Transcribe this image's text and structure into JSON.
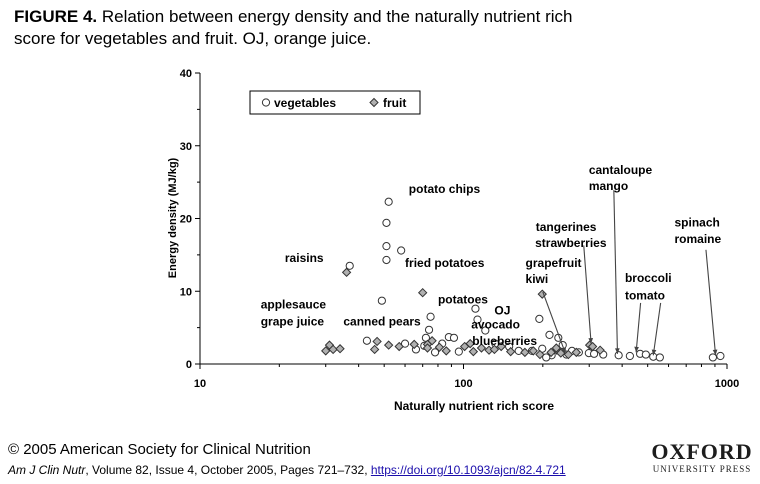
{
  "figure": {
    "label": "FIGURE 4.",
    "caption": " Relation between energy density and the naturally nutrient rich score for vegetables and fruit. OJ, orange juice."
  },
  "chart_data": {
    "type": "scatter",
    "xlabel": "Naturally nutrient rich score",
    "ylabel": "Energy density (MJ/kg)",
    "xscale": "log",
    "xlim": [
      10,
      1000
    ],
    "ylim": [
      0,
      40
    ],
    "xticks": [
      10,
      100,
      1000
    ],
    "yticks": [
      0,
      10,
      20,
      30,
      40
    ],
    "grid": false,
    "legend_position": "top-left",
    "series": [
      {
        "name": "vegetables",
        "marker": "open-circle",
        "points": [
          [
            37,
            13.5
          ],
          [
            49,
            8.7
          ],
          [
            52,
            22.3
          ],
          [
            51,
            19.4
          ],
          [
            51,
            16.2
          ],
          [
            51,
            14.3
          ],
          [
            58,
            15.6
          ],
          [
            75,
            6.5
          ],
          [
            74,
            4.7
          ],
          [
            72,
            3.6
          ],
          [
            71,
            2.5
          ],
          [
            66,
            2.0
          ],
          [
            60,
            2.8
          ],
          [
            43,
            3.2
          ],
          [
            83,
            2.8
          ],
          [
            88,
            3.7
          ],
          [
            92,
            3.6
          ],
          [
            96,
            1.7
          ],
          [
            78,
            1.6
          ],
          [
            111,
            7.6
          ],
          [
            113,
            6.1
          ],
          [
            121,
            4.6
          ],
          [
            132,
            2.8
          ],
          [
            149,
            2.4
          ],
          [
            162,
            1.8
          ],
          [
            182,
            1.8
          ],
          [
            194,
            6.2
          ],
          [
            199,
            2.1
          ],
          [
            212,
            4.0
          ],
          [
            229,
            3.6
          ],
          [
            238,
            2.6
          ],
          [
            258,
            1.8
          ],
          [
            274,
            1.6
          ],
          [
            299,
            1.5
          ],
          [
            313,
            1.4
          ],
          [
            339,
            1.3
          ],
          [
            388,
            1.2
          ],
          [
            428,
            1.1
          ],
          [
            468,
            1.4
          ],
          [
            492,
            1.3
          ],
          [
            525,
            1.0
          ],
          [
            556,
            0.9
          ],
          [
            884,
            0.9
          ],
          [
            944,
            1.1
          ],
          [
            216,
            1.2
          ],
          [
            246,
            1.3
          ],
          [
            206,
            0.9
          ]
        ]
      },
      {
        "name": "fruit",
        "marker": "diamond",
        "points": [
          [
            36,
            12.6
          ],
          [
            31,
            2.6
          ],
          [
            32,
            2.0
          ],
          [
            30,
            1.8
          ],
          [
            34,
            2.1
          ],
          [
            47,
            3.1
          ],
          [
            52,
            2.6
          ],
          [
            57,
            2.4
          ],
          [
            46,
            2.0
          ],
          [
            65,
            2.7
          ],
          [
            73,
            2.7
          ],
          [
            76,
            3.2
          ],
          [
            81,
            2.3
          ],
          [
            86,
            1.8
          ],
          [
            70,
            9.8
          ],
          [
            73,
            2.2
          ],
          [
            101,
            2.4
          ],
          [
            106,
            2.8
          ],
          [
            109,
            1.7
          ],
          [
            117,
            2.2
          ],
          [
            125,
            1.9
          ],
          [
            131,
            2.0
          ],
          [
            151,
            1.7
          ],
          [
            184,
            1.8
          ],
          [
            199,
            9.6
          ],
          [
            195,
            1.3
          ],
          [
            226,
            1.9
          ],
          [
            234,
            1.5
          ],
          [
            250,
            1.3
          ],
          [
            268,
            1.6
          ],
          [
            301,
            2.6
          ],
          [
            309,
            2.4
          ],
          [
            330,
            1.9
          ],
          [
            215,
            1.6
          ],
          [
            225,
            2.2
          ],
          [
            139,
            2.4
          ],
          [
            171,
            1.6
          ]
        ]
      }
    ],
    "annotations": [
      {
        "text": "potato chips",
        "x": 62,
        "y": 23.5
      },
      {
        "text": "raisins",
        "x": 21,
        "y": 14.0
      },
      {
        "text": "fried potatoes",
        "x": 60,
        "y": 13.3
      },
      {
        "text": "applesauce",
        "x": 17,
        "y": 7.6
      },
      {
        "text": "grape juice",
        "x": 17,
        "y": 5.3
      },
      {
        "text": "canned pears",
        "x": 35,
        "y": 5.3
      },
      {
        "text": "potatoes",
        "x": 80,
        "y": 8.3
      },
      {
        "text": "OJ",
        "x": 131,
        "y": 6.8
      },
      {
        "text": "avocado",
        "x": 107,
        "y": 4.9
      },
      {
        "text": "blueberries",
        "x": 108,
        "y": 2.6
      },
      {
        "text": "grapefruit",
        "x": 172,
        "y": 13.3
      },
      {
        "text": "kiwi",
        "x": 172,
        "y": 11.1
      },
      {
        "text": "tangerines",
        "x": 188,
        "y": 18.3
      },
      {
        "text": "strawberries",
        "x": 187,
        "y": 16.1
      },
      {
        "text": "cantaloupe",
        "x": 299,
        "y": 26.1
      },
      {
        "text": "mango",
        "x": 299,
        "y": 23.9
      },
      {
        "text": "broccoli",
        "x": 410,
        "y": 11.3
      },
      {
        "text": "tomato",
        "x": 410,
        "y": 8.9
      },
      {
        "text": "spinach",
        "x": 632,
        "y": 18.9
      },
      {
        "text": "romaine",
        "x": 632,
        "y": 16.6
      }
    ],
    "pointers": [
      {
        "from": [
          286,
          16.3
        ],
        "to": [
          305,
          2.8
        ]
      },
      {
        "from": [
          372,
          23.9
        ],
        "to": [
          384,
          1.4
        ]
      },
      {
        "from": [
          200,
          9.9
        ],
        "to": [
          244,
          1.4
        ]
      },
      {
        "from": [
          470,
          8.4
        ],
        "to": [
          452,
          1.6
        ]
      },
      {
        "from": [
          560,
          8.4
        ],
        "to": [
          525,
          1.2
        ]
      },
      {
        "from": [
          832,
          15.7
        ],
        "to": [
          905,
          1.2
        ]
      }
    ]
  },
  "footer": {
    "copyright": "© 2005 American Society for Clinical Nutrition",
    "journal": "Am J Clin Nutr",
    "citation": ", Volume 82, Issue 4, October 2005, Pages 721–732, ",
    "doi": "https://doi.org/10.1093/ajcn/82.4.721",
    "publisher_name": "OXFORD",
    "publisher_sub": "UNIVERSITY PRESS"
  }
}
